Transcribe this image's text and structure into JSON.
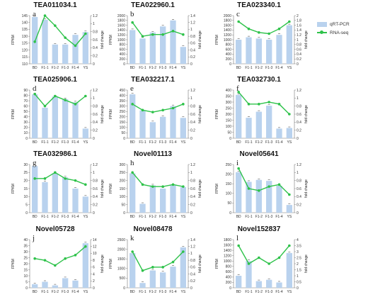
{
  "legend": {
    "bar_label": "qRT-PCR",
    "line_label": "RNA-seq",
    "bar_color": "#b9d2ee",
    "line_color": "#2ec24a"
  },
  "chart_data": [
    {
      "type": "bar",
      "letter": "a",
      "title": "TEA011034.1",
      "categories": [
        "BD",
        "F1-1",
        "F1-2",
        "F1-3",
        "F1-4",
        "YS"
      ],
      "ylabel": "FPKM",
      "y2label": "fold change",
      "ylim": [
        110,
        145
      ],
      "yticks": [
        110,
        115,
        120,
        125,
        130,
        135,
        140,
        145
      ],
      "y2lim": [
        0,
        1.2
      ],
      "y2ticks": [
        0,
        0.2,
        0.4,
        0.6,
        0.8,
        1.0,
        1.2
      ],
      "bars": [
        144,
        142,
        124,
        124,
        131,
        133
      ],
      "line": [
        0.55,
        1.2,
        0.95,
        0.65,
        0.45,
        0.75
      ]
    },
    {
      "type": "bar",
      "letter": "b",
      "title": "TEA022960.1",
      "categories": [
        "BD",
        "F1-1",
        "F1-2",
        "F1-3",
        "F1-4",
        "YS"
      ],
      "ylabel": "FPKM",
      "y2label": "fold change",
      "ylim": [
        0,
        2000
      ],
      "yticks": [
        0,
        200,
        400,
        600,
        800,
        1000,
        1200,
        1400,
        1600,
        1800,
        2000
      ],
      "y2lim": [
        0,
        1.4
      ],
      "y2ticks": [
        0,
        0.2,
        0.4,
        0.6,
        0.8,
        1.0,
        1.2,
        1.4
      ],
      "bars": [
        1400,
        1050,
        1300,
        1550,
        1800,
        700
      ],
      "line": [
        1.2,
        0.8,
        0.85,
        0.85,
        0.95,
        0.85
      ]
    },
    {
      "type": "bar",
      "letter": "c",
      "title": "TEA023340.1",
      "categories": [
        "BD",
        "F1-1",
        "F1-2",
        "F1-3",
        "F1-4",
        "YS"
      ],
      "ylabel": "FPKM",
      "y2label": "fold change",
      "ylim": [
        0,
        2000
      ],
      "yticks": [
        0,
        200,
        400,
        600,
        800,
        1000,
        1200,
        1400,
        1600,
        1800,
        2000
      ],
      "y2lim": [
        0,
        2.0
      ],
      "y2ticks": [
        0,
        0.2,
        0.4,
        0.6,
        0.8,
        1.0,
        1.2,
        1.4,
        1.6,
        1.8,
        2.0
      ],
      "bars": [
        1000,
        1100,
        1050,
        1000,
        1200,
        1600
      ],
      "line": [
        1.75,
        1.45,
        1.3,
        1.25,
        1.45,
        1.75
      ]
    },
    {
      "type": "bar",
      "letter": "d",
      "title": "TEA025906.1",
      "categories": [
        "BD",
        "F1-1",
        "F1-2",
        "F1-3",
        "F1-4",
        "YS"
      ],
      "ylabel": "FPKM",
      "y2label": "fold change",
      "ylim": [
        0,
        90
      ],
      "yticks": [
        0,
        10,
        20,
        30,
        40,
        50,
        60,
        70,
        80,
        90
      ],
      "y2lim": [
        0,
        1.2
      ],
      "y2ticks": [
        0,
        0.2,
        0.4,
        0.6,
        0.8,
        1.0,
        1.2
      ],
      "bars": [
        82,
        57,
        78,
        73,
        67,
        18
      ],
      "line": [
        1.1,
        0.8,
        1.05,
        0.95,
        0.85,
        1.05
      ]
    },
    {
      "type": "bar",
      "letter": "e",
      "title": "TEA032217.1",
      "categories": [
        "BD",
        "F1-1",
        "F1-2",
        "F1-3",
        "F1-4",
        "YS"
      ],
      "ylabel": "FPKM",
      "y2label": "fold change",
      "ylim": [
        0,
        450
      ],
      "yticks": [
        0,
        50,
        100,
        150,
        200,
        250,
        300,
        350,
        400,
        450
      ],
      "y2lim": [
        0,
        1.2
      ],
      "y2ticks": [
        0,
        0.2,
        0.4,
        0.6,
        0.8,
        1.0,
        1.2
      ],
      "bars": [
        410,
        260,
        150,
        200,
        300,
        190
      ],
      "line": [
        0.85,
        0.7,
        0.65,
        0.7,
        0.75,
        0.85
      ]
    },
    {
      "type": "bar",
      "letter": "f",
      "title": "TEA032730.1",
      "categories": [
        "BD",
        "F1-1",
        "F1-2",
        "F1-3",
        "F1-4",
        "YS"
      ],
      "ylabel": "FPKM",
      "y2label": "fold change",
      "ylim": [
        0,
        400
      ],
      "yticks": [
        0,
        50,
        100,
        150,
        200,
        250,
        300,
        350,
        400
      ],
      "y2lim": [
        0,
        1.2
      ],
      "y2ticks": [
        0,
        0.2,
        0.4,
        0.6,
        0.8,
        1.0,
        1.2
      ],
      "bars": [
        360,
        170,
        220,
        270,
        80,
        85
      ],
      "line": [
        1.15,
        0.85,
        0.85,
        0.9,
        0.85,
        0.6
      ]
    },
    {
      "type": "bar",
      "letter": "g",
      "title": "TEA032986.1",
      "categories": [
        "BD",
        "F1-1",
        "F1-2",
        "F1-3",
        "F1-4",
        "YS"
      ],
      "ylabel": "FPKM",
      "y2label": "fold change",
      "ylim": [
        0,
        30
      ],
      "yticks": [
        0,
        5,
        10,
        15,
        20,
        25,
        30
      ],
      "y2lim": [
        0,
        1.2
      ],
      "y2ticks": [
        0,
        0.2,
        0.4,
        0.6,
        0.8,
        1.0,
        1.2
      ],
      "bars": [
        29,
        19,
        24.5,
        22,
        15,
        10
      ],
      "line": [
        0.85,
        0.85,
        1.0,
        0.85,
        0.8,
        0.7
      ]
    },
    {
      "type": "bar",
      "letter": "h",
      "title": "Novel01113",
      "categories": [
        "BD",
        "F1-1",
        "F1-2",
        "F1-3",
        "F1-4",
        "YS"
      ],
      "ylabel": "FPKM",
      "y2label": "fold change",
      "ylim": [
        0,
        300
      ],
      "yticks": [
        0,
        50,
        100,
        150,
        200,
        250,
        300
      ],
      "y2lim": [
        0,
        1.2
      ],
      "y2ticks": [
        0,
        0.2,
        0.4,
        0.6,
        0.8,
        1.0,
        1.2
      ],
      "bars": [
        245,
        55,
        170,
        150,
        170,
        160
      ],
      "line": [
        1.0,
        0.7,
        0.65,
        0.65,
        0.7,
        0.65
      ]
    },
    {
      "type": "bar",
      "letter": "i",
      "title": "Novel05641",
      "categories": [
        "BD",
        "F1-1",
        "F1-2",
        "F1-3",
        "F1-4",
        "YS"
      ],
      "ylabel": "FPKM",
      "y2label": "fold change",
      "ylim": [
        0,
        250
      ],
      "yticks": [
        0,
        50,
        100,
        150,
        200,
        250
      ],
      "y2lim": [
        0,
        1.2
      ],
      "y2ticks": [
        0,
        0.2,
        0.4,
        0.6,
        0.8,
        1.0,
        1.2
      ],
      "bars": [
        210,
        160,
        170,
        165,
        140,
        40
      ],
      "line": [
        1.1,
        0.6,
        0.55,
        0.65,
        0.7,
        0.45
      ]
    },
    {
      "type": "bar",
      "letter": "j",
      "title": "Novel05728",
      "categories": [
        "BD",
        "F1-1",
        "F1-2",
        "F1-3",
        "F1-4",
        "YS"
      ],
      "ylabel": "FPKM",
      "y2label": "fold change",
      "ylim": [
        0,
        40
      ],
      "yticks": [
        0,
        5,
        10,
        15,
        20,
        25,
        30,
        35,
        40
      ],
      "y2lim": [
        0,
        14
      ],
      "y2ticks": [
        0,
        2,
        4,
        6,
        8,
        10,
        12,
        14
      ],
      "bars": [
        3,
        5,
        2,
        8,
        6,
        37
      ],
      "line": [
        8.5,
        8,
        6.5,
        8.5,
        9.5,
        12
      ]
    },
    {
      "type": "bar",
      "letter": "k",
      "title": "Novel08478",
      "categories": [
        "BD",
        "F1-1",
        "F1-2",
        "F1-3",
        "F1-4",
        "YS"
      ],
      "ylabel": "FPKM",
      "y2label": "fold change",
      "ylim": [
        0,
        2500
      ],
      "yticks": [
        0,
        500,
        1000,
        1500,
        2000,
        2500
      ],
      "y2lim": [
        0,
        1.4
      ],
      "y2ticks": [
        0,
        0.2,
        0.4,
        0.6,
        0.8,
        1.0,
        1.2,
        1.4
      ],
      "bars": [
        1800,
        250,
        900,
        800,
        1100,
        2100
      ],
      "line": [
        1.05,
        0.5,
        0.6,
        0.6,
        0.75,
        1.05
      ]
    },
    {
      "type": "bar",
      "letter": "l",
      "title": "Novel152837",
      "categories": [
        "BD",
        "F1-1",
        "F1-2",
        "F1-3",
        "F1-4",
        "YS"
      ],
      "ylabel": "FPKM",
      "y2label": "fold change",
      "ylim": [
        0,
        1800
      ],
      "yticks": [
        0,
        200,
        400,
        600,
        800,
        1000,
        1200,
        1400,
        1600,
        1800
      ],
      "y2lim": [
        0,
        4.0
      ],
      "y2ticks": [
        0,
        0.5,
        1.0,
        1.5,
        2.0,
        2.5,
        3.0,
        3.5,
        4.0
      ],
      "bars": [
        450,
        1000,
        250,
        300,
        200,
        1300
      ],
      "line": [
        3.5,
        2.0,
        2.5,
        2.0,
        2.5,
        3.5
      ]
    }
  ]
}
